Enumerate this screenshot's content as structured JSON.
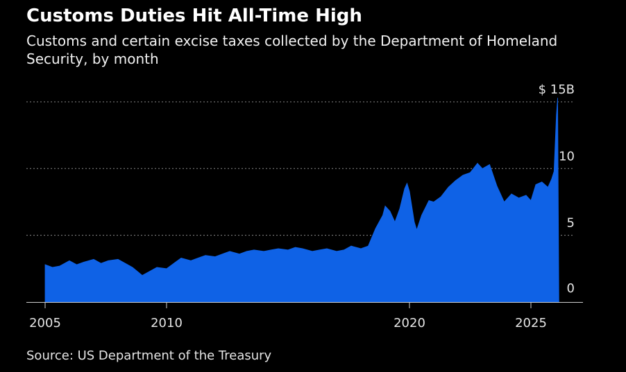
{
  "header": {
    "title": "Customs Duties Hit All-Time High",
    "subtitle": "Customs and certain excise taxes collected by the Department of Homeland Security, by month"
  },
  "footer": {
    "source": "Source: US Department of the Treasury"
  },
  "colors": {
    "background": "#000000",
    "area": "#0f62e6",
    "gridline": "#8a8a8a",
    "text": "#e6e6e6"
  },
  "chart_data": {
    "type": "area",
    "title": "Customs Duties Hit All-Time High",
    "subtitle": "Customs and certain excise taxes collected by the Department of Homeland Security, by month",
    "xlabel": "",
    "ylabel": "",
    "y_unit": "$B",
    "xlim": [
      2005,
      2027
    ],
    "ylim": [
      0,
      15
    ],
    "grid": true,
    "legend": "none",
    "x_ticks": [
      {
        "value": 2005,
        "label": "2005"
      },
      {
        "value": 2010,
        "label": "2010"
      },
      {
        "value": 2020,
        "label": "2020"
      },
      {
        "value": 2025,
        "label": "2025"
      }
    ],
    "y_ticks": [
      {
        "value": 0,
        "label": "0"
      },
      {
        "value": 5,
        "label": "5"
      },
      {
        "value": 10,
        "label": "10"
      },
      {
        "value": 15,
        "label": "$ 15B"
      }
    ],
    "series": [
      {
        "points": [
          [
            2005.0,
            2.8
          ],
          [
            2005.3,
            2.6
          ],
          [
            2005.6,
            2.7
          ],
          [
            2006.0,
            3.1
          ],
          [
            2006.3,
            2.8
          ],
          [
            2006.6,
            3.0
          ],
          [
            2007.0,
            3.2
          ],
          [
            2007.3,
            2.9
          ],
          [
            2007.6,
            3.1
          ],
          [
            2008.0,
            3.2
          ],
          [
            2008.3,
            2.9
          ],
          [
            2008.6,
            2.6
          ],
          [
            2009.0,
            2.0
          ],
          [
            2009.3,
            2.3
          ],
          [
            2009.6,
            2.6
          ],
          [
            2010.0,
            2.5
          ],
          [
            2010.3,
            2.9
          ],
          [
            2010.6,
            3.3
          ],
          [
            2011.0,
            3.1
          ],
          [
            2011.3,
            3.3
          ],
          [
            2011.6,
            3.5
          ],
          [
            2012.0,
            3.4
          ],
          [
            2012.3,
            3.6
          ],
          [
            2012.6,
            3.8
          ],
          [
            2013.0,
            3.6
          ],
          [
            2013.3,
            3.8
          ],
          [
            2013.6,
            3.9
          ],
          [
            2014.0,
            3.8
          ],
          [
            2014.3,
            3.9
          ],
          [
            2014.6,
            4.0
          ],
          [
            2015.0,
            3.9
          ],
          [
            2015.3,
            4.1
          ],
          [
            2015.6,
            4.0
          ],
          [
            2016.0,
            3.8
          ],
          [
            2016.3,
            3.9
          ],
          [
            2016.6,
            4.0
          ],
          [
            2017.0,
            3.8
          ],
          [
            2017.3,
            3.9
          ],
          [
            2017.6,
            4.2
          ],
          [
            2018.0,
            4.0
          ],
          [
            2018.3,
            4.2
          ],
          [
            2018.6,
            5.5
          ],
          [
            2018.9,
            6.5
          ],
          [
            2019.0,
            7.2
          ],
          [
            2019.2,
            6.8
          ],
          [
            2019.4,
            6.0
          ],
          [
            2019.6,
            7.0
          ],
          [
            2019.8,
            8.5
          ],
          [
            2019.9,
            8.9
          ],
          [
            2020.0,
            8.3
          ],
          [
            2020.2,
            6.0
          ],
          [
            2020.3,
            5.4
          ],
          [
            2020.5,
            6.5
          ],
          [
            2020.8,
            7.6
          ],
          [
            2021.0,
            7.5
          ],
          [
            2021.3,
            7.9
          ],
          [
            2021.6,
            8.6
          ],
          [
            2021.9,
            9.1
          ],
          [
            2022.2,
            9.5
          ],
          [
            2022.5,
            9.7
          ],
          [
            2022.8,
            10.4
          ],
          [
            2023.0,
            10.0
          ],
          [
            2023.3,
            10.3
          ],
          [
            2023.6,
            8.7
          ],
          [
            2023.9,
            7.5
          ],
          [
            2024.2,
            8.1
          ],
          [
            2024.5,
            7.8
          ],
          [
            2024.8,
            8.0
          ],
          [
            2025.0,
            7.6
          ],
          [
            2025.2,
            8.8
          ],
          [
            2025.45,
            9.0
          ],
          [
            2025.7,
            8.6
          ],
          [
            2025.85,
            9.2
          ],
          [
            2025.95,
            9.8
          ],
          [
            2026.05,
            14.0
          ],
          [
            2026.1,
            15.3
          ],
          [
            2026.15,
            0
          ]
        ]
      }
    ]
  }
}
